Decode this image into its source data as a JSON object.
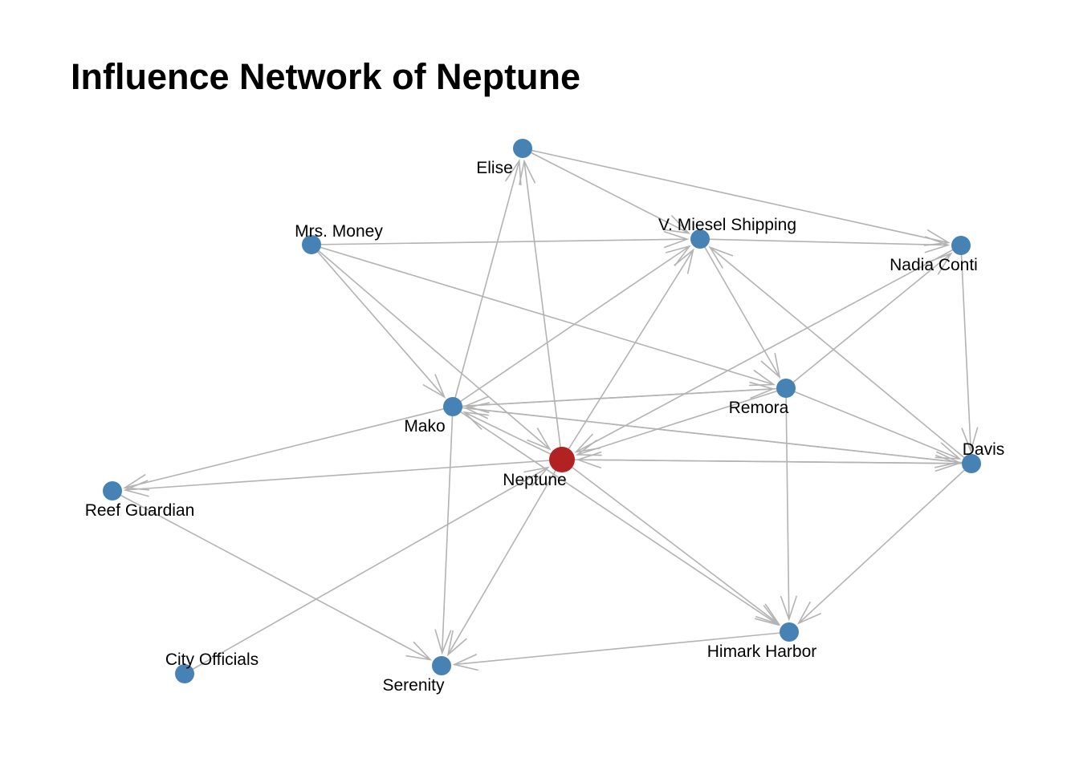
{
  "title": "Influence Network of Neptune",
  "colors": {
    "node": "#4682b4",
    "focus_node": "#b22222",
    "edge": "#b3b3b3"
  },
  "nodes": [
    {
      "id": "neptune",
      "label": "Neptune",
      "focus": true
    },
    {
      "id": "elise",
      "label": "Elise"
    },
    {
      "id": "mrs-money",
      "label": "Mrs. Money"
    },
    {
      "id": "v-miesel",
      "label": "V. Miesel Shipping"
    },
    {
      "id": "nadia",
      "label": "Nadia Conti"
    },
    {
      "id": "remora",
      "label": "Remora"
    },
    {
      "id": "mako",
      "label": "Mako"
    },
    {
      "id": "davis",
      "label": "Davis"
    },
    {
      "id": "reef",
      "label": "Reef Guardian"
    },
    {
      "id": "himark",
      "label": "Himark Harbor"
    },
    {
      "id": "city",
      "label": "City Officials"
    },
    {
      "id": "serenity",
      "label": "Serenity"
    }
  ],
  "edges": [
    {
      "from": "neptune",
      "to": "elise"
    },
    {
      "from": "neptune",
      "to": "v-miesel"
    },
    {
      "from": "neptune",
      "to": "mako"
    },
    {
      "from": "neptune",
      "to": "davis"
    },
    {
      "from": "neptune",
      "to": "reef"
    },
    {
      "from": "neptune",
      "to": "himark"
    },
    {
      "from": "neptune",
      "to": "serenity"
    },
    {
      "from": "mrs-money",
      "to": "neptune"
    },
    {
      "from": "mrs-money",
      "to": "mako"
    },
    {
      "from": "mrs-money",
      "to": "v-miesel"
    },
    {
      "from": "mrs-money",
      "to": "remora"
    },
    {
      "from": "nadia",
      "to": "neptune"
    },
    {
      "from": "city",
      "to": "neptune"
    },
    {
      "from": "elise",
      "to": "nadia"
    },
    {
      "from": "elise",
      "to": "v-miesel"
    },
    {
      "from": "mako",
      "to": "elise"
    },
    {
      "from": "mako",
      "to": "v-miesel"
    },
    {
      "from": "mako",
      "to": "remora"
    },
    {
      "from": "mako",
      "to": "davis"
    },
    {
      "from": "mako",
      "to": "serenity"
    },
    {
      "from": "mako",
      "to": "reef"
    },
    {
      "from": "mako",
      "to": "himark"
    },
    {
      "from": "v-miesel",
      "to": "nadia"
    },
    {
      "from": "v-miesel",
      "to": "remora"
    },
    {
      "from": "davis",
      "to": "v-miesel"
    },
    {
      "from": "remora",
      "to": "mako"
    },
    {
      "from": "remora",
      "to": "nadia"
    },
    {
      "from": "remora",
      "to": "neptune"
    },
    {
      "from": "remora",
      "to": "himark"
    },
    {
      "from": "remora",
      "to": "davis"
    },
    {
      "from": "nadia",
      "to": "davis"
    },
    {
      "from": "davis",
      "to": "mako"
    },
    {
      "from": "davis",
      "to": "neptune"
    },
    {
      "from": "davis",
      "to": "himark"
    },
    {
      "from": "himark",
      "to": "serenity"
    },
    {
      "from": "reef",
      "to": "serenity"
    }
  ]
}
